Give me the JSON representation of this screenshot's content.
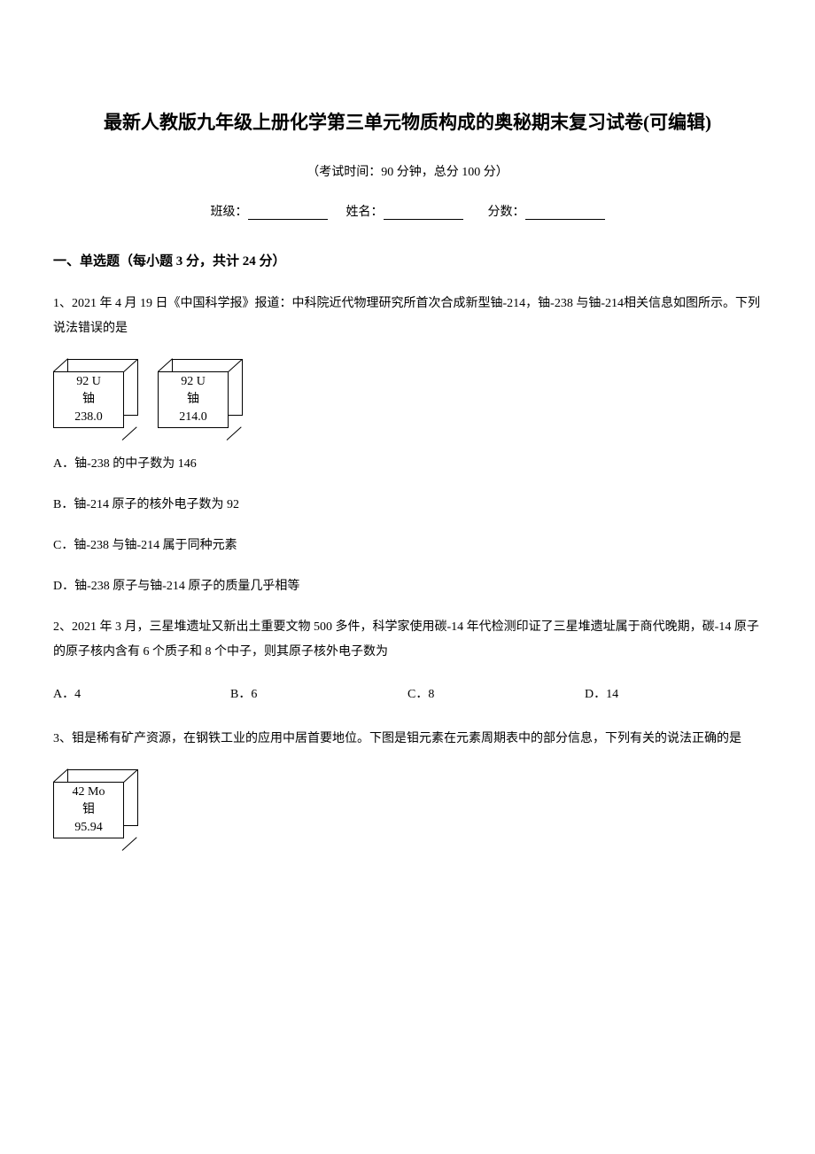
{
  "document": {
    "title": "最新人教版九年级上册化学第三单元物质构成的奥秘期末复习试卷(可编辑)",
    "exam_info": "（考试时间：90 分钟，总分 100 分）",
    "fill_labels": {
      "class": "班级：",
      "name": "姓名：",
      "score": "分数："
    },
    "section1_header": "一、单选题（每小题 3 分，共计 24 分）",
    "q1": {
      "text": "1、2021 年 4 月 19 日《中国科学报》报道：中科院近代物理研究所首次合成新型铀-214，铀-238 与铀-214相关信息如图所示。下列说法错误的是",
      "box1": {
        "line1": "92  U",
        "line2": "铀",
        "line3": "238.0"
      },
      "box2": {
        "line1": "92  U",
        "line2": "铀",
        "line3": "214.0"
      },
      "a": "A．铀-238 的中子数为 146",
      "b": "B．铀-214 原子的核外电子数为 92",
      "c": "C．铀-238 与铀-214 属于同种元素",
      "d": "D．铀-238 原子与铀-214 原子的质量几乎相等"
    },
    "q2": {
      "text": "2、2021 年 3 月，三星堆遗址又新出土重要文物 500 多件，科学家使用碳-14 年代检测印证了三星堆遗址属于商代晚期，碳-14 原子的原子核内含有 6 个质子和 8 个中子，则其原子核外电子数为",
      "a": "A．4",
      "b": "B．6",
      "c": "C．8",
      "d": "D．14"
    },
    "q3": {
      "text": "3、钼是稀有矿产资源，在钢铁工业的应用中居首要地位。下图是钼元素在元素周期表中的部分信息，下列有关的说法正确的是",
      "box": {
        "line1": "42   Mo",
        "line2": "钼",
        "line3": "95.94"
      }
    }
  },
  "style": {
    "bg_color": "#ffffff",
    "text_color": "#000000",
    "title_fontsize": 21,
    "body_fontsize": 14,
    "section_fontsize": 15
  }
}
